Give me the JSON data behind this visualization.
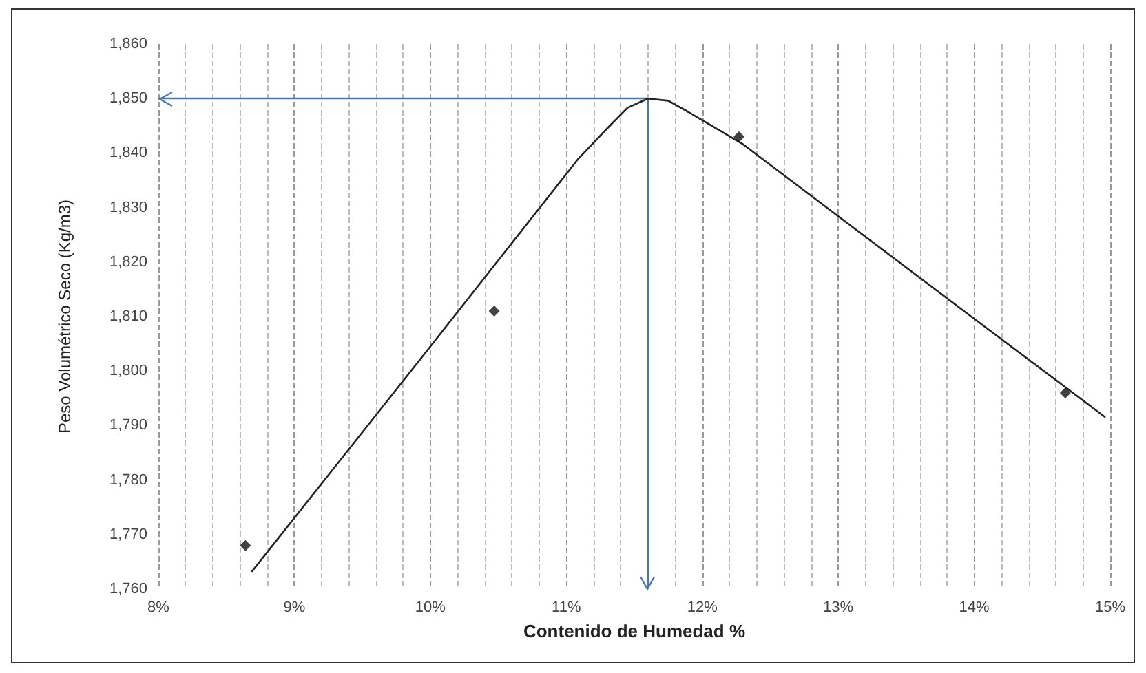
{
  "chart_data": {
    "type": "scatter",
    "xlabel": "Contenido de Humedad %",
    "ylabel": "Peso Volumétrico Seco (Kg/m3)",
    "xlim": [
      8,
      15
    ],
    "ylim": [
      1760,
      1860
    ],
    "xticks": [
      {
        "value": 8,
        "label": "8%"
      },
      {
        "value": 9,
        "label": "9%"
      },
      {
        "value": 10,
        "label": "10%"
      },
      {
        "value": 11,
        "label": "11%"
      },
      {
        "value": 12,
        "label": "12%"
      },
      {
        "value": 13,
        "label": "13%"
      },
      {
        "value": 14,
        "label": "14%"
      },
      {
        "value": 15,
        "label": "15%"
      }
    ],
    "yticks": [
      {
        "value": 1760,
        "label": "1,760"
      },
      {
        "value": 1770,
        "label": "1,770"
      },
      {
        "value": 1780,
        "label": "1,780"
      },
      {
        "value": 1790,
        "label": "1,790"
      },
      {
        "value": 1800,
        "label": "1,800"
      },
      {
        "value": 1810,
        "label": "1,810"
      },
      {
        "value": 1820,
        "label": "1,820"
      },
      {
        "value": 1830,
        "label": "1,830"
      },
      {
        "value": 1840,
        "label": "1,840"
      },
      {
        "value": 1850,
        "label": "1,850"
      },
      {
        "value": 1860,
        "label": "1,860"
      }
    ],
    "grid": "x",
    "series": [
      {
        "color": "#111111",
        "marker": "diamond",
        "x": [
          8.64,
          10.47,
          12.27,
          14.67
        ],
        "values": [
          1768,
          1811,
          1843,
          1796
        ]
      },
      {
        "type": "line",
        "color": "#222222",
        "marker": "none",
        "line_style": "solid",
        "x": [
          8.69,
          10.0,
          11.09,
          11.3,
          11.45,
          11.6,
          11.75,
          11.9,
          12.3,
          13.0,
          14.0,
          14.96
        ],
        "values": [
          1763.3,
          1804.5,
          1839,
          1844.5,
          1848.3,
          1850,
          1849.6,
          1847.5,
          1841.6,
          1828.4,
          1809.6,
          1791.6
        ]
      }
    ],
    "ref_lines": [
      {
        "axis": "y",
        "value": 1850,
        "color": "#4a78a8"
      },
      {
        "axis": "x",
        "value": 11.6,
        "color": "#4a78a8"
      }
    ]
  }
}
